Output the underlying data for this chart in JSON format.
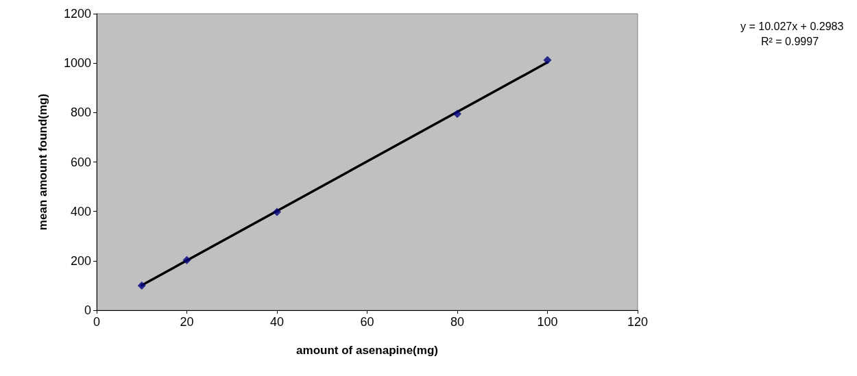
{
  "chart_data": {
    "type": "scatter",
    "xlabel": "amount of asenapine(mg)",
    "ylabel": "mean amount found(mg)",
    "xlim": [
      0,
      120
    ],
    "xticks": [
      0,
      20,
      40,
      60,
      80,
      100,
      120
    ],
    "ylim": [
      0,
      1200
    ],
    "yticks": [
      0,
      200,
      400,
      600,
      800,
      1000,
      1200
    ],
    "grid": false,
    "series": [
      {
        "color": "#000080",
        "x": [
          10,
          20,
          40,
          80,
          100
        ],
        "values": [
          100,
          203,
          398,
          795,
          1012
        ],
        "marker": "diamond"
      },
      {
        "type": "line",
        "color": "#000000",
        "x": [
          10,
          100
        ],
        "values": [
          101,
          1003
        ],
        "line_style": "solid",
        "marker": "none"
      }
    ],
    "annotations": [
      "y = 10.027x + 0.2983",
      "R² = 0.9997"
    ]
  }
}
